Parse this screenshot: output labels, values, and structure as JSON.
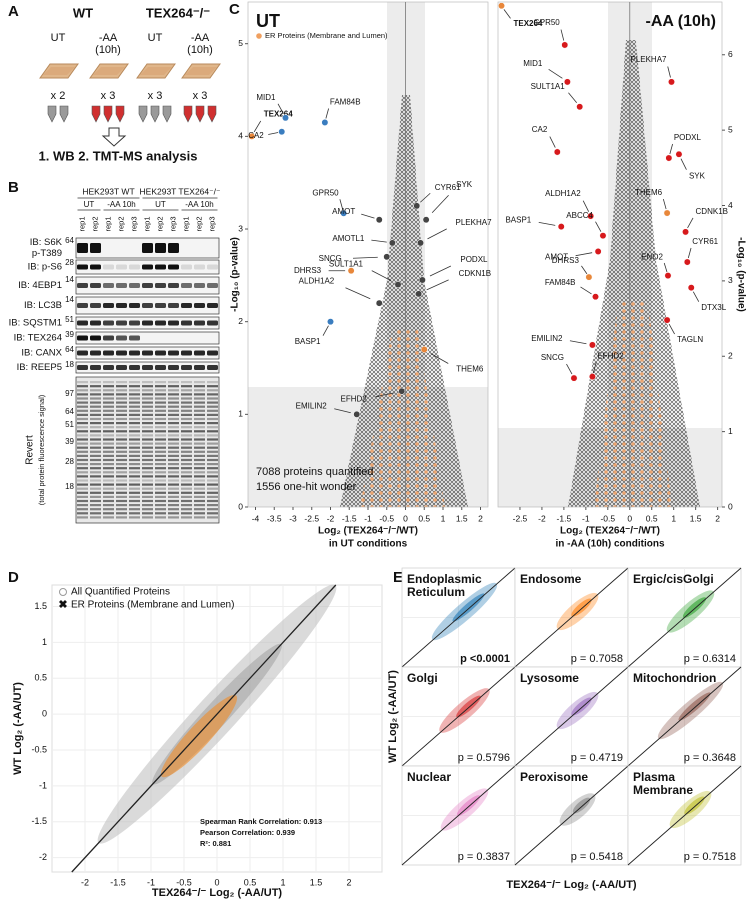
{
  "panel_a": {
    "label": "A",
    "groups": [
      {
        "name": "WT",
        "conditions": [
          {
            "name": [
              "UT"
            ],
            "reps": "x 2"
          },
          {
            "name": [
              "-AA",
              "(10h)"
            ],
            "reps": "x 3"
          }
        ]
      },
      {
        "name": "TEX264⁻/⁻",
        "conditions": [
          {
            "name": [
              "UT"
            ],
            "reps": "x 3"
          },
          {
            "name": [
              "-AA",
              "(10h)"
            ],
            "reps": "x 3"
          }
        ]
      }
    ],
    "analysis": "1. WB  2. TMT-MS analysis"
  },
  "panel_b": {
    "label": "B",
    "cell_lines": [
      "HEK293T WT",
      "HEK293T TEX264⁻/⁻"
    ],
    "treatments": [
      "UT",
      "-AA 10h",
      "UT",
      "-AA 10h"
    ],
    "lanes": [
      "rep1",
      "rep2",
      "rep1",
      "rep2",
      "rep3",
      "rep1",
      "rep2",
      "rep3",
      "rep1",
      "rep2",
      "rep3"
    ],
    "blots": [
      {
        "name": [
          "IB: S6K",
          "p-T389"
        ],
        "mw": "64"
      },
      {
        "name": [
          "IB: p-S6"
        ],
        "mw": "28"
      },
      {
        "name": [
          "IB: 4EBP1"
        ],
        "mw": "14"
      },
      {
        "name": [
          "IB: LC3B"
        ],
        "mw": "14"
      },
      {
        "name": [
          "IB: SQSTM1"
        ],
        "mw": "51"
      },
      {
        "name": [
          "IB: TEX264"
        ],
        "mw": "39"
      },
      {
        "name": [
          "IB: CANX"
        ],
        "mw": "64"
      },
      {
        "name": [
          "IB: REEP5"
        ],
        "mw": "18"
      }
    ],
    "revert": {
      "name": [
        "Revert",
        "(total protein fluorescence signal)"
      ],
      "mw": [
        "97",
        "64",
        "51",
        "39",
        "28",
        "18"
      ]
    }
  },
  "panel_c": {
    "label": "C",
    "plots": [
      {
        "title": "UT",
        "legend": "ER Proteins (Membrane and Lumen)",
        "legend_color": "#f0a060",
        "ylabel": "-Log₁₀ (p-value)",
        "xlabel": [
          "Log₂ (TEX264⁻/⁻/WT)",
          "in UT conditions"
        ],
        "xlim": [
          -4.2,
          2.2
        ],
        "ylim": [
          0,
          5.45
        ],
        "xticks": [
          -4,
          -3.5,
          -3,
          -2.5,
          -2,
          -1.5,
          -1,
          -0.5,
          0,
          0.5,
          1,
          1.5,
          2
        ],
        "yticks": [
          0,
          1,
          2,
          3,
          4,
          5
        ],
        "note": [
          "7088 proteins quantified",
          "1556 one-hit wonder"
        ],
        "points": [
          {
            "name": "TEX264",
            "x": -4.1,
            "y": 4.0,
            "color": "#e8873a"
          },
          {
            "name": "MID1",
            "x": -3.2,
            "y": 4.2,
            "color": "#3a7dbf"
          },
          {
            "name": "CA2",
            "x": -3.3,
            "y": 4.05,
            "color": "#3a7dbf"
          },
          {
            "name": "FAM84B",
            "x": -2.15,
            "y": 4.15,
            "color": "#3a7dbf"
          },
          {
            "name": "GPR50",
            "x": -1.65,
            "y": 3.17,
            "color": "#3a7dbf"
          },
          {
            "name": "AMOT",
            "x": -0.7,
            "y": 3.1,
            "color": "#444444"
          },
          {
            "name": "AMOTL1",
            "x": -0.35,
            "y": 2.85,
            "color": "#444444"
          },
          {
            "name": "SNCG",
            "x": -0.5,
            "y": 2.7,
            "color": "#444444"
          },
          {
            "name": "SULT1A1",
            "x": -0.2,
            "y": 2.4,
            "color": "#444444"
          },
          {
            "name": "ALDH1A2",
            "x": -0.7,
            "y": 2.2,
            "color": "#444444"
          },
          {
            "name": "DHRS3",
            "x": -1.45,
            "y": 2.55,
            "color": "#e8873a"
          },
          {
            "name": "BASP1",
            "x": -2.0,
            "y": 2.0,
            "color": "#3a7dbf"
          },
          {
            "name": "CYR61",
            "x": 0.3,
            "y": 3.25,
            "color": "#444444"
          },
          {
            "name": "SYK",
            "x": 0.55,
            "y": 3.1,
            "color": "#444444"
          },
          {
            "name": "PLEKHA7",
            "x": 0.4,
            "y": 2.85,
            "color": "#444444"
          },
          {
            "name": "PODXL",
            "x": 0.45,
            "y": 2.45,
            "color": "#444444"
          },
          {
            "name": "CDKN1B",
            "x": 0.35,
            "y": 2.3,
            "color": "#444444"
          },
          {
            "name": "THEM6",
            "x": 0.5,
            "y": 1.7,
            "color": "#e8873a"
          },
          {
            "name": "EFHD2",
            "x": -0.1,
            "y": 1.25,
            "color": "#444444"
          },
          {
            "name": "EMILIN2",
            "x": -1.3,
            "y": 1.0,
            "color": "#444444"
          }
        ]
      },
      {
        "title": "-AA (10h)",
        "ylabel": "-Log₁₀ (p-value)",
        "xlabel": [
          "Log₂ (TEX264⁻/⁻/WT)",
          "in -AA (10h) conditions"
        ],
        "xlim": [
          -3,
          2.1
        ],
        "ylim": [
          0,
          6.7
        ],
        "xticks": [
          -2.5,
          -2,
          -1.5,
          -1,
          -0.5,
          0,
          0.5,
          1,
          1.5,
          2
        ],
        "yticks": [
          0,
          1,
          2,
          3,
          4,
          5,
          6
        ],
        "points": [
          {
            "name": "TEX264",
            "x": -2.92,
            "y": 6.65,
            "color": "#e8873a"
          },
          {
            "name": "GPR50",
            "x": -1.48,
            "y": 6.13,
            "color": "#d7191c"
          },
          {
            "name": "MID1",
            "x": -1.42,
            "y": 5.64,
            "color": "#d7191c"
          },
          {
            "name": "SULT1A1",
            "x": -1.14,
            "y": 5.31,
            "color": "#d7191c"
          },
          {
            "name": "PLEKHA7",
            "x": 0.95,
            "y": 5.64,
            "color": "#d7191c"
          },
          {
            "name": "CA2",
            "x": -1.65,
            "y": 4.71,
            "color": "#d7191c"
          },
          {
            "name": "PODXL",
            "x": 0.89,
            "y": 4.63,
            "color": "#d7191c"
          },
          {
            "name": "SYK",
            "x": 1.12,
            "y": 4.68,
            "color": "#d7191c"
          },
          {
            "name": "THEM6",
            "x": 0.85,
            "y": 3.9,
            "color": "#e8873a"
          },
          {
            "name": "ALDH1A2",
            "x": -0.89,
            "y": 3.86,
            "color": "#d7191c"
          },
          {
            "name": "BASP1",
            "x": -1.56,
            "y": 3.72,
            "color": "#d7191c"
          },
          {
            "name": "ABCC4",
            "x": -0.61,
            "y": 3.6,
            "color": "#d7191c"
          },
          {
            "name": "CDNK1B",
            "x": 1.27,
            "y": 3.65,
            "color": "#d7191c"
          },
          {
            "name": "AMOT",
            "x": -0.72,
            "y": 3.39,
            "color": "#d7191c"
          },
          {
            "name": "CYR61",
            "x": 1.31,
            "y": 3.25,
            "color": "#d7191c"
          },
          {
            "name": "DHRS3",
            "x": -0.93,
            "y": 3.05,
            "color": "#e8873a"
          },
          {
            "name": "ENO2",
            "x": 0.87,
            "y": 3.07,
            "color": "#d7191c"
          },
          {
            "name": "DTX3L",
            "x": 1.4,
            "y": 2.91,
            "color": "#d7191c"
          },
          {
            "name": "FAM84B",
            "x": -0.78,
            "y": 2.79,
            "color": "#d7191c"
          },
          {
            "name": "TAGLN",
            "x": 0.85,
            "y": 2.48,
            "color": "#d7191c"
          },
          {
            "name": "EMILIN2",
            "x": -0.85,
            "y": 2.15,
            "color": "#d7191c"
          },
          {
            "name": "SNCG",
            "x": -1.27,
            "y": 1.71,
            "color": "#d7191c"
          },
          {
            "name": "EFHD2",
            "x": -0.85,
            "y": 1.73,
            "color": "#d7191c"
          }
        ]
      }
    ]
  },
  "panel_d": {
    "label": "D",
    "legend": [
      "All Quantified Proteins",
      "ER Proteins (Membrane and Lumen)"
    ],
    "colors": [
      "#9a9a9a",
      "#f08c28"
    ],
    "xlabel": "TEX264⁻/⁻ Log₂ (-AA/UT)",
    "ylabel": "WT Log₂ (-AA/UT)",
    "xlim": [
      -2.5,
      2.5
    ],
    "ylim": [
      -2.2,
      1.8
    ],
    "xticks": [
      -2,
      -1.5,
      -1,
      -0.5,
      0,
      0.5,
      1,
      1.5,
      2
    ],
    "yticks": [
      -2,
      -1.5,
      -1,
      -0.5,
      0,
      0.5,
      1,
      1.5
    ],
    "stats": [
      "Spearman Rank Correlation: 0.913",
      "Pearson Correlation: 0.939",
      "R²: 0.881"
    ]
  },
  "panel_e": {
    "label": "E",
    "ylabel": "WT Log₂ (-AA/UT)",
    "xlabel": "TEX264⁻/⁻ Log₂ (-AA/UT)",
    "panels": [
      {
        "name": [
          "Endoplasmic",
          "Reticulum"
        ],
        "p": "p <0.0001",
        "color": "#1f77b4",
        "significant": true
      },
      {
        "name": [
          "Endosome"
        ],
        "p": "p = 0.7058",
        "color": "#ff7f0e",
        "significant": false
      },
      {
        "name": [
          "Ergic/cisGolgi"
        ],
        "p": "p = 0.6314",
        "color": "#2ca02c",
        "significant": false
      },
      {
        "name": [
          "Golgi"
        ],
        "p": "p = 0.5796",
        "color": "#d62728",
        "significant": false
      },
      {
        "name": [
          "Lysosome"
        ],
        "p": "p = 0.4719",
        "color": "#9467bd",
        "significant": false
      },
      {
        "name": [
          "Mitochondrion"
        ],
        "p": "p = 0.3648",
        "color": "#8c564b",
        "significant": false
      },
      {
        "name": [
          "Nuclear"
        ],
        "p": "p = 0.3837",
        "color": "#e377c2",
        "significant": false
      },
      {
        "name": [
          "Peroxisome"
        ],
        "p": "p = 0.5418",
        "color": "#7f7f7f",
        "significant": false
      },
      {
        "name": [
          "Plasma",
          "Membrane"
        ],
        "p": "p = 0.7518",
        "color": "#bcbd22",
        "significant": false
      }
    ]
  }
}
